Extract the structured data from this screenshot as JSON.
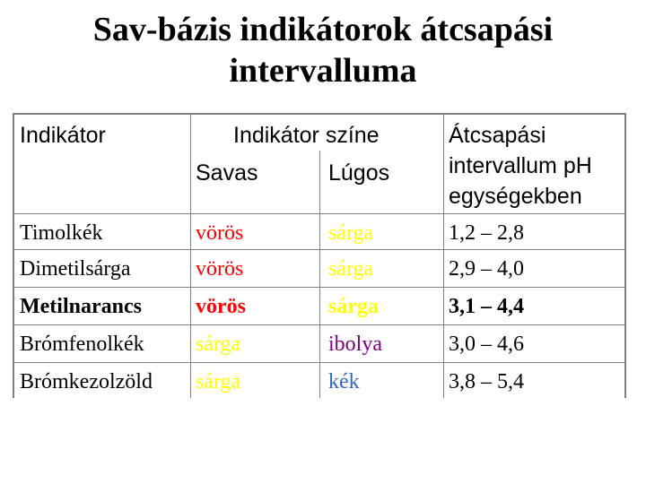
{
  "title": {
    "line1": "Sav-bázis indikátorok átcsapási",
    "line2": "intervalluma"
  },
  "table": {
    "header": {
      "indicator": "Indikátor",
      "color": "Indikátor színe",
      "acidic": "Savas",
      "basic": "Lúgos",
      "range_line1": "Átcsapási",
      "range_line2": "intervallum pH",
      "range_line3": "egységekben"
    },
    "rows": [
      {
        "name": "Timolkék",
        "acidic": "vörös",
        "acidic_color": "#ff0000",
        "basic": "sárga",
        "basic_color": "#ffff00",
        "range": "1,2 – 2,8",
        "bold": false
      },
      {
        "name": "Dimetilsárga",
        "acidic": "vörös",
        "acidic_color": "#ff0000",
        "basic": "sárga",
        "basic_color": "#ffff00",
        "range": "2,9 – 4,0",
        "bold": false
      },
      {
        "name": "Metilnarancs",
        "acidic": "vörös",
        "acidic_color": "#ff0000",
        "basic": "sárga",
        "basic_color": "#ffff00",
        "range": "3,1 – 4,4",
        "bold": true
      },
      {
        "name": "Brómfenolkék",
        "acidic": "sárga",
        "acidic_color": "#ffff00",
        "basic": "ibolya",
        "basic_color": "#800080",
        "range": "3,0 – 4,6",
        "bold": false
      },
      {
        "name": "Brómkezolzöld",
        "acidic": "sárga",
        "acidic_color": "#ffff00",
        "basic": "kék",
        "basic_color": "#3366cc",
        "range": "3,8 – 5,4",
        "bold": false
      }
    ]
  }
}
